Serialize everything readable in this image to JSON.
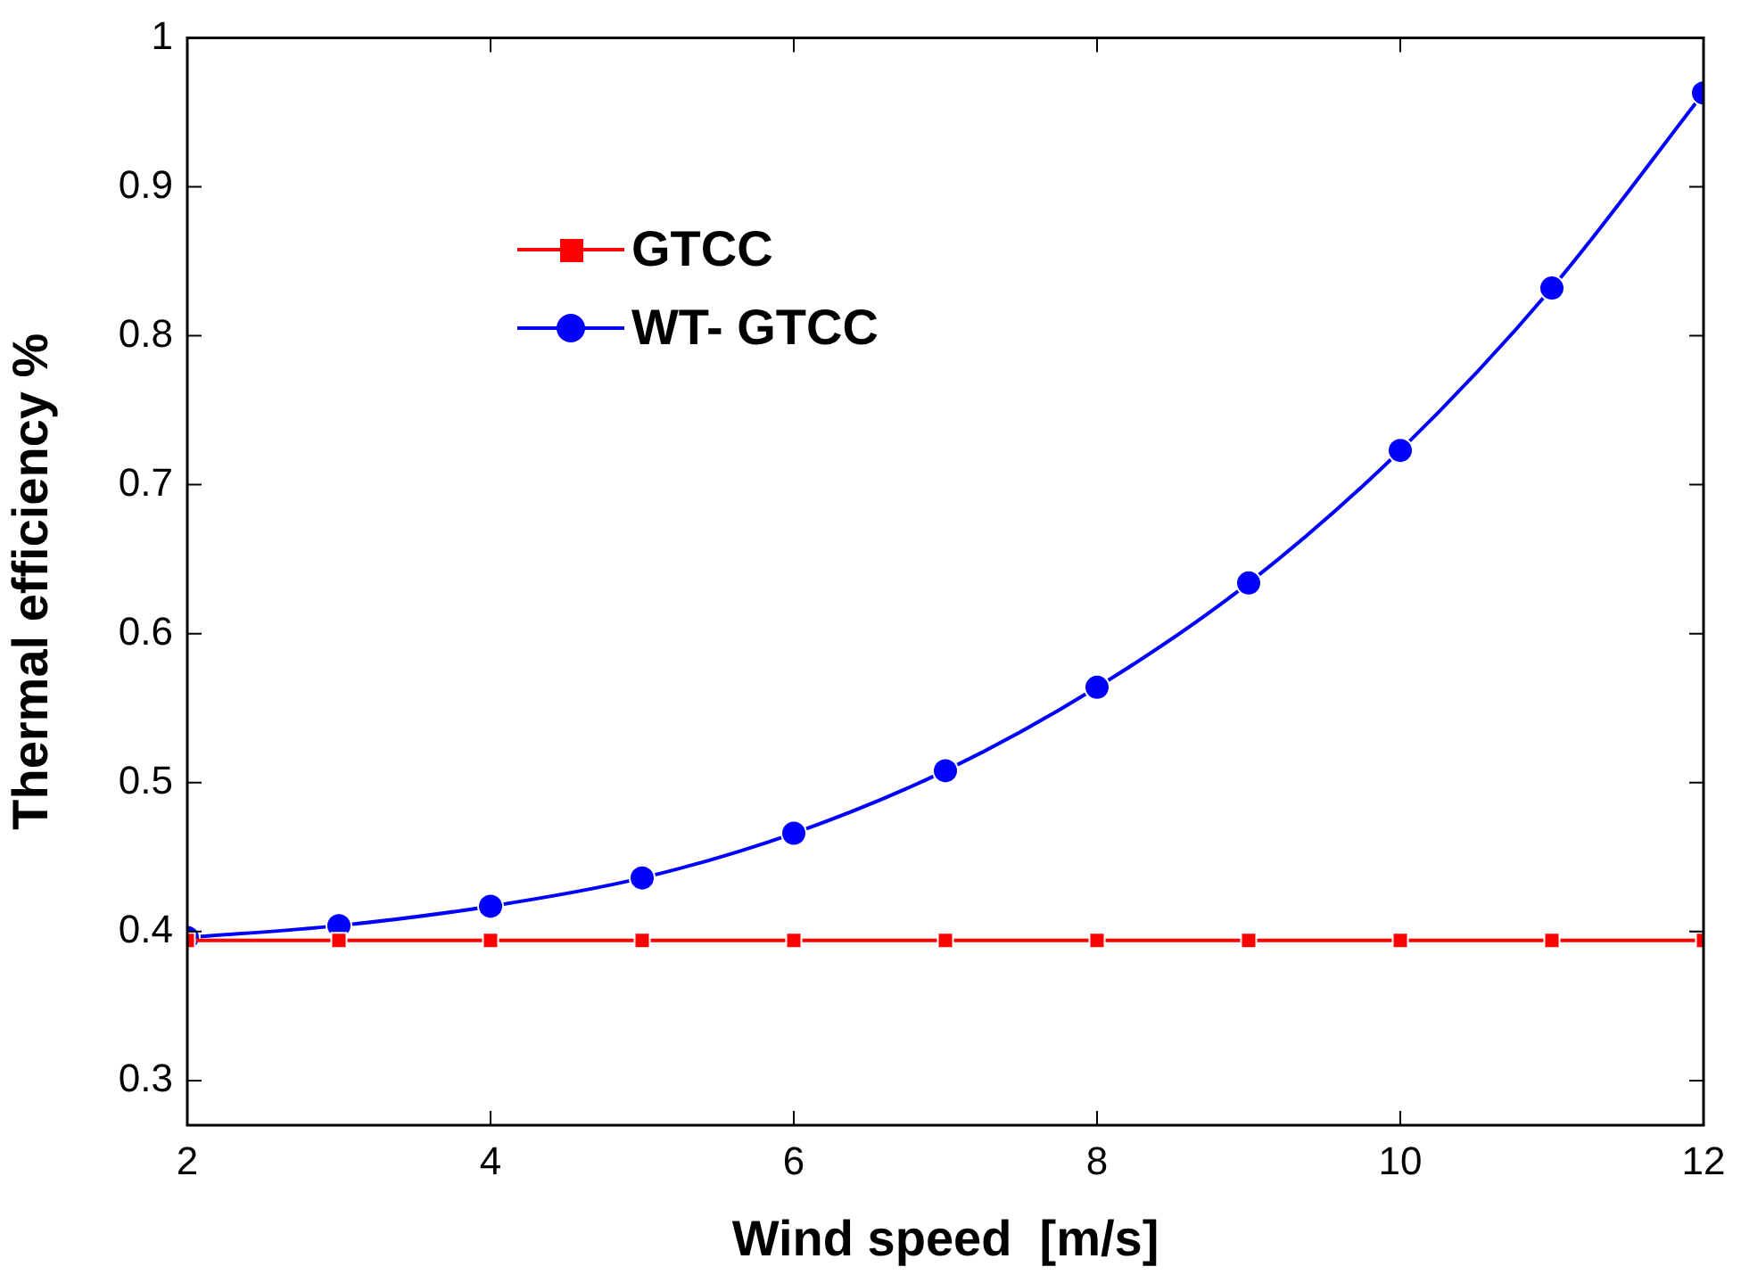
{
  "chart_data": {
    "type": "line",
    "xlabel": "Wind speed  [m/s]",
    "ylabel": "Thermal efficiency %",
    "x": [
      2,
      3,
      4,
      5,
      6,
      7,
      8,
      9,
      10,
      11,
      12
    ],
    "series": [
      {
        "name": "GTCC",
        "color": "#ff0000",
        "marker": "square",
        "values": [
          0.394,
          0.394,
          0.394,
          0.394,
          0.394,
          0.394,
          0.394,
          0.394,
          0.394,
          0.394,
          0.394
        ]
      },
      {
        "name": "WT- GTCC",
        "color": "#0000ff",
        "marker": "circle",
        "values": [
          0.396,
          0.404,
          0.417,
          0.436,
          0.466,
          0.508,
          0.564,
          0.634,
          0.723,
          0.832,
          0.963
        ]
      }
    ],
    "xlim": [
      2,
      12
    ],
    "xticks": [
      2,
      4,
      6,
      8,
      10,
      12
    ],
    "ylim": [
      0.27,
      1
    ],
    "yticks": [
      0.3,
      0.4,
      0.5,
      0.6,
      0.7,
      0.8,
      0.9,
      1
    ],
    "grid": false,
    "legend": "top left",
    "line_style": "solid"
  }
}
